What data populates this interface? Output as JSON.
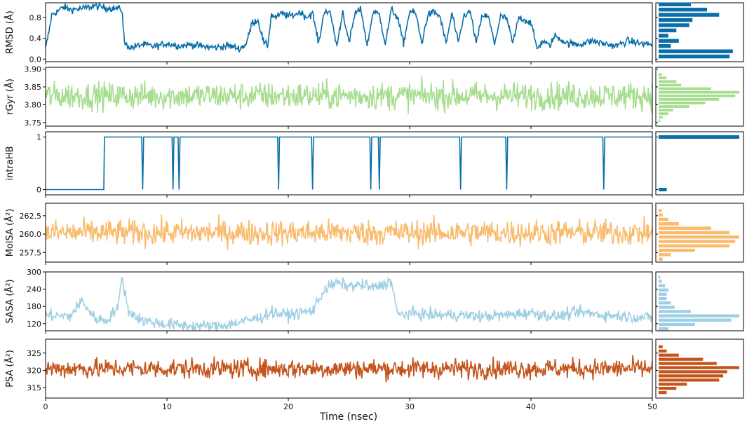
{
  "xlabel": "Time (nsec)",
  "chart_data": [
    {
      "type": "line",
      "ylabel": "RMSD (Å)",
      "color": "#0a6fa8",
      "xlim": [
        0,
        50
      ],
      "ylim": [
        -0.05,
        1.08
      ],
      "yticks": [
        0.0,
        0.4,
        0.8
      ],
      "ytick_labels": [
        "0.0",
        "0.4",
        "0.8"
      ],
      "series": [
        {
          "x": [
            0,
            0.3,
            0.5,
            1.0,
            1.5,
            2.0,
            3.0,
            4.0,
            5.0,
            6.0,
            6.3,
            6.5,
            7.0,
            8.0,
            9.0,
            10.0,
            11.0,
            12.0,
            13.0,
            14.0,
            15.0,
            16.0,
            16.5,
            16.8,
            17.0,
            17.5,
            18.0,
            18.3,
            18.6,
            19.0,
            19.5,
            20.0,
            20.5,
            21.0,
            21.5,
            22.0,
            22.5,
            23.0,
            23.5,
            24.0,
            24.5,
            25.0,
            25.5,
            26.0,
            26.5,
            27.0,
            27.5,
            28.0,
            28.5,
            29.0,
            29.5,
            30.0,
            30.5,
            31.0,
            31.5,
            32.0,
            32.5,
            33.0,
            33.5,
            34.0,
            34.5,
            35.0,
            35.5,
            36.0,
            36.5,
            37.0,
            37.5,
            38.0,
            38.5,
            39.0,
            39.5,
            40.0,
            40.5,
            41.0,
            41.5,
            42.0,
            43.0,
            44.0,
            45.0,
            46.0,
            47.0,
            48.0,
            49.0,
            50.0
          ],
          "y": [
            0.2,
            0.55,
            0.85,
            0.92,
            1.0,
            0.95,
            0.97,
            1.02,
            0.98,
            0.97,
            0.95,
            0.3,
            0.22,
            0.28,
            0.24,
            0.3,
            0.25,
            0.28,
            0.24,
            0.22,
            0.26,
            0.2,
            0.28,
            0.5,
            0.7,
            0.75,
            0.3,
            0.25,
            0.85,
            0.8,
            0.88,
            0.82,
            0.85,
            0.9,
            0.8,
            0.88,
            0.3,
            0.95,
            0.85,
            0.25,
            0.92,
            0.3,
            0.88,
            0.95,
            0.25,
            0.92,
            0.85,
            0.3,
            0.95,
            0.8,
            0.3,
            0.92,
            0.88,
            0.3,
            0.85,
            0.9,
            0.82,
            0.3,
            0.88,
            0.3,
            0.85,
            0.9,
            0.3,
            0.85,
            0.8,
            0.3,
            0.82,
            0.78,
            0.3,
            0.8,
            0.75,
            0.7,
            0.2,
            0.35,
            0.25,
            0.45,
            0.3,
            0.28,
            0.35,
            0.3,
            0.25,
            0.35,
            0.3,
            0.28
          ]
        }
      ],
      "histogram": {
        "bin_centers": [
          0.05,
          0.15,
          0.25,
          0.35,
          0.45,
          0.55,
          0.65,
          0.75,
          0.85,
          0.95,
          1.05
        ],
        "counts": [
          0.88,
          0.92,
          0.15,
          0.25,
          0.12,
          0.22,
          0.38,
          0.42,
          0.75,
          0.6,
          0.4
        ]
      }
    },
    {
      "type": "line",
      "ylabel": "rGyr (Å)",
      "color": "#a6dd8e",
      "xlim": [
        0,
        50
      ],
      "ylim": [
        3.74,
        3.905
      ],
      "yticks": [
        3.75,
        3.8,
        3.85,
        3.9
      ],
      "ytick_labels": [
        "3.75",
        "3.80",
        "3.85",
        "3.90"
      ],
      "series": [
        {
          "mean": 3.825,
          "spread": 0.035,
          "extrema": [
            3.75,
            3.89
          ]
        }
      ],
      "histogram": {
        "bin_centers": [
          3.755,
          3.765,
          3.775,
          3.785,
          3.795,
          3.805,
          3.815,
          3.825,
          3.835,
          3.845,
          3.855,
          3.865,
          3.875,
          3.885
        ],
        "counts": [
          0.02,
          0.05,
          0.12,
          0.18,
          0.38,
          0.58,
          0.75,
          0.95,
          1.0,
          0.65,
          0.28,
          0.22,
          0.1,
          0.04
        ]
      }
    },
    {
      "type": "line",
      "ylabel": "intraHB",
      "color": "#0a6fa8",
      "xlim": [
        0,
        50
      ],
      "ylim": [
        -0.1,
        1.1
      ],
      "yticks": [
        0,
        1
      ],
      "ytick_labels": [
        "0",
        "1"
      ],
      "series": [
        {
          "step_on": 4.8,
          "dips": [
            8.0,
            10.5,
            11.0,
            19.2,
            22.0,
            26.8,
            27.5,
            34.2,
            38.0,
            46.0
          ]
        }
      ],
      "histogram": {
        "bin_centers": [
          0,
          1
        ],
        "counts": [
          0.1,
          1.0
        ]
      }
    },
    {
      "type": "line",
      "ylabel": "MolSA (Å²)",
      "color": "#f9bb6e",
      "xlim": [
        0,
        50
      ],
      "ylim": [
        256.2,
        264.2
      ],
      "yticks": [
        257.5,
        260.0,
        262.5
      ],
      "ytick_labels": [
        "257.5",
        "260.0",
        "262.5"
      ],
      "series": [
        {
          "mean": 260.2,
          "spread": 1.6,
          "extrema": [
            256.8,
            263.7
          ]
        }
      ],
      "histogram": {
        "bin_centers": [
          256.6,
          257.2,
          257.8,
          258.4,
          259.0,
          259.6,
          260.2,
          260.8,
          261.4,
          262.0,
          262.6,
          263.2
        ],
        "counts": [
          0.05,
          0.15,
          0.45,
          0.88,
          0.95,
          1.0,
          0.88,
          0.65,
          0.25,
          0.12,
          0.05,
          0.04
        ]
      }
    },
    {
      "type": "line",
      "ylabel": "SASA (Å²)",
      "color": "#9fcfe3",
      "xlim": [
        0,
        50
      ],
      "ylim": [
        95,
        300
      ],
      "yticks": [
        120,
        180,
        240,
        300
      ],
      "ytick_labels": [
        "120",
        "180",
        "240",
        "300"
      ],
      "series": [
        {
          "x": [
            0,
            2,
            3,
            4,
            5,
            6,
            6.3,
            6.8,
            8,
            10,
            12,
            14,
            16,
            18,
            18.5,
            20,
            22,
            23,
            24,
            25,
            26,
            27,
            28,
            28.5,
            29,
            30,
            32,
            34,
            36,
            38,
            40,
            42,
            44,
            46,
            48,
            50
          ],
          "y": [
            150,
            145,
            200,
            140,
            130,
            180,
            285,
            165,
            130,
            118,
            112,
            110,
            125,
            145,
            160,
            150,
            165,
            240,
            262,
            250,
            255,
            245,
            258,
            270,
            150,
            155,
            150,
            150,
            145,
            150,
            158,
            145,
            160,
            150,
            145,
            140
          ]
        }
      ],
      "histogram": {
        "bin_centers": [
          102,
          117,
          132,
          147,
          162,
          177,
          192,
          207,
          222,
          237,
          252,
          267,
          282
        ],
        "counts": [
          0.12,
          0.45,
          0.9,
          1.0,
          0.4,
          0.2,
          0.15,
          0.1,
          0.1,
          0.12,
          0.08,
          0.04,
          0.02
        ]
      }
    },
    {
      "type": "line",
      "ylabel": "PSA (Å²)",
      "color": "#c4541c",
      "xlim": [
        0,
        50
      ],
      "ylim": [
        312,
        329
      ],
      "yticks": [
        315,
        320,
        325
      ],
      "ytick_labels": [
        "315",
        "320",
        "325"
      ],
      "series": [
        {
          "mean": 320.5,
          "spread": 2.6,
          "extrema": [
            313.0,
            328.5
          ]
        }
      ],
      "histogram": {
        "bin_centers": [
          313.6,
          314.8,
          316.0,
          317.2,
          318.4,
          319.6,
          320.8,
          322.0,
          323.2,
          324.4,
          325.6,
          326.8
        ],
        "counts": [
          0.1,
          0.22,
          0.35,
          0.75,
          0.8,
          0.85,
          1.0,
          0.72,
          0.55,
          0.25,
          0.1,
          0.05
        ]
      }
    }
  ],
  "xaxis": {
    "ticks": [
      0,
      10,
      20,
      30,
      40,
      50
    ],
    "tick_labels": [
      "0",
      "10",
      "20",
      "30",
      "40",
      "50"
    ]
  }
}
